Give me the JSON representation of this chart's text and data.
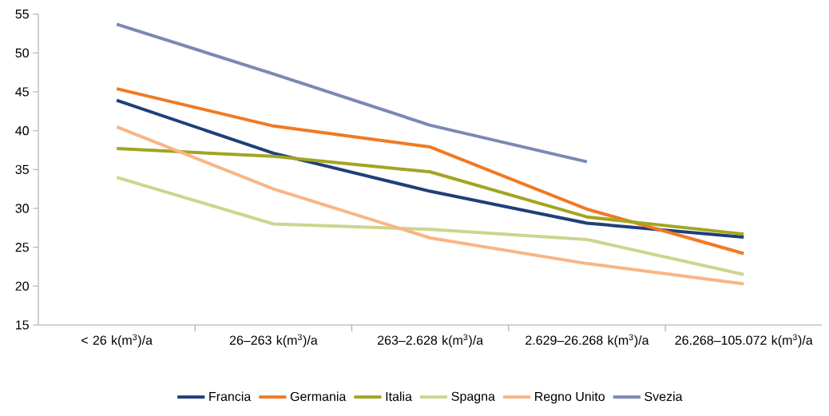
{
  "chart_data": {
    "type": "line",
    "categories": [
      "< 26 k(m$^{3}$)/a",
      "26–263 k(m$^{3}$)/a",
      "263–2.628 k(m$^{3}$)/a",
      "2.629–26.268 k(m$^{3}$)/a",
      "26.268–105.072 k(m$^{3}$)/a"
    ],
    "series": [
      {
        "name": "Francia",
        "color": "#1f3f7a",
        "values": [
          43.9,
          37.1,
          32.2,
          28.1,
          26.3
        ]
      },
      {
        "name": "Germania",
        "color": "#f07a22",
        "values": [
          45.4,
          40.6,
          37.9,
          29.9,
          24.2
        ]
      },
      {
        "name": "Italia",
        "color": "#a2a521",
        "values": [
          37.7,
          36.7,
          34.7,
          28.9,
          26.7
        ]
      },
      {
        "name": "Spagna",
        "color": "#cfd48e",
        "values": [
          34.0,
          28.0,
          27.3,
          26.0,
          21.5
        ]
      },
      {
        "name": "Regno Unito",
        "color": "#f9b585",
        "values": [
          40.5,
          32.5,
          26.2,
          22.9,
          20.3
        ]
      },
      {
        "name": "Svezia",
        "color": "#7a89b3",
        "values": [
          53.7,
          47.3,
          40.7,
          36.0,
          null
        ]
      }
    ],
    "ylim": [
      15,
      55
    ],
    "yticks": [
      15,
      20,
      25,
      30,
      35,
      40,
      45,
      50,
      55
    ],
    "legend": "bottom"
  }
}
